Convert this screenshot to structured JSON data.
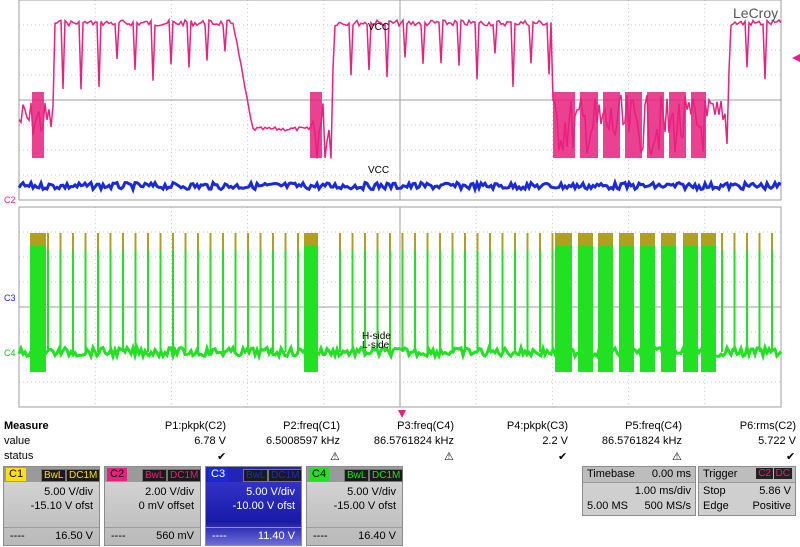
{
  "brand": "LeCroy",
  "trace_labels": {
    "c1": "VCC",
    "c2": "VCC",
    "c3": "H-side",
    "c4": "L-side"
  },
  "axis_markers": {
    "c2": "C2",
    "c3": "C3",
    "c4": "C4"
  },
  "colors": {
    "c1": "#ffe000",
    "c2": "#e8207e",
    "c3": "#1a2ad8",
    "c4": "#22e022",
    "grid": "#c8c8c8",
    "olive": "#b0a020"
  },
  "measure": {
    "title": "Measure",
    "row_value": "value",
    "row_status": "status",
    "params": [
      {
        "name": "P1:pkpk(C2)",
        "value": "6.78 V",
        "status": "check"
      },
      {
        "name": "P2:freq(C1)",
        "value": "6.5008597 kHz",
        "status": "warning"
      },
      {
        "name": "P3:freq(C4)",
        "value": "86.5761824 kHz",
        "status": "warning"
      },
      {
        "name": "P4:pkpk(C3)",
        "value": "2.2 V",
        "status": "check"
      },
      {
        "name": "P5:freq(C4)",
        "value": "86.5761824 kHz",
        "status": "warning"
      },
      {
        "name": "P6:rms(C2)",
        "value": "5.722 V",
        "status": "check"
      }
    ]
  },
  "channels": [
    {
      "id": "C1",
      "bw": "BwL",
      "coupling": "DC1M",
      "vdiv": "5.00 V/div",
      "offset": "-15.10 V ofst",
      "dash": "----",
      "value": "16.50 V"
    },
    {
      "id": "C2",
      "bw": "BwL",
      "coupling": "DC1M",
      "vdiv": "2.00 V/div",
      "offset": "0 mV offset",
      "dash": "----",
      "value": "560 mV"
    },
    {
      "id": "C3",
      "bw": "BwL",
      "coupling": "DC1M",
      "vdiv": "5.00 V/div",
      "offset": "-10.00 V ofst",
      "dash": "----",
      "value": "11.40 V"
    },
    {
      "id": "C4",
      "bw": "BwL",
      "coupling": "DC1M",
      "vdiv": "5.00 V/div",
      "offset": "-15.00 V ofst",
      "dash": "----",
      "value": "16.40 V"
    }
  ],
  "timebase": {
    "label": "Timebase",
    "delay": "0.00 ms",
    "tdiv": "1.00 ms/div",
    "samples": "5.00 MS",
    "rate": "500 MS/s"
  },
  "trigger": {
    "label": "Trigger",
    "source": "C2",
    "coupling": "DC",
    "mode": "Stop",
    "level": "5.86 V",
    "type": "Edge",
    "slope": "Positive"
  }
}
